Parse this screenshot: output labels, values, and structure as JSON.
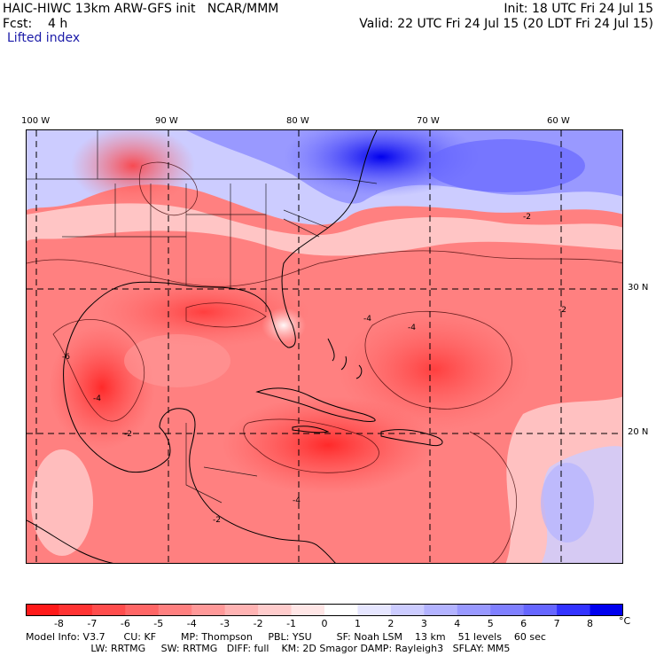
{
  "header": {
    "model_title": "HAIC-HIWC 13km ARW-GFS init   NCAR/MMM",
    "init": "Init: 18 UTC Fri 24 Jul 15",
    "fcst": "Fcst:    4 h",
    "valid": "Valid: 22 UTC Fri 24 Jul 15 (20 LDT Fri 24 Jul 15)",
    "field": "Lifted index"
  },
  "map": {
    "lon_labels": [
      "100 W",
      "90 W",
      "80 W",
      "70 W",
      "60 W"
    ],
    "lat_labels": [
      "30 N",
      "20 N"
    ],
    "contour_labels": [
      "-2",
      "-4",
      "-6",
      "-2",
      "-4",
      "-2",
      "-4",
      "-2",
      "-4"
    ]
  },
  "colorbar": {
    "labels": [
      "-8",
      "-7",
      "-6",
      "-5",
      "-4",
      "-3",
      "-2",
      "-1",
      "0",
      "1",
      "2",
      "3",
      "4",
      "5",
      "6",
      "7",
      "8"
    ],
    "unit": "°C",
    "colors": [
      "#ff1a1a",
      "#ff3333",
      "#ff4d4d",
      "#ff6666",
      "#ff8080",
      "#ff9999",
      "#ffb3b3",
      "#ffcccc",
      "#ffe6e6",
      "#ffffff",
      "#e6e6ff",
      "#ccccff",
      "#b3b3ff",
      "#9999ff",
      "#8080ff",
      "#6666ff",
      "#3333ff",
      "#0000ee"
    ]
  },
  "model_info": {
    "line1": "Model Info: V3.7      CU: KF        MP: Thompson     PBL: YSU        SF: Noah LSM    13 km    51 levels    60 sec",
    "line2": "                     LW: RRTMG     SW: RRTMG   DIFF: full    KM: 2D Smagor DAMP: Rayleigh3   SFLAY: MM5"
  }
}
